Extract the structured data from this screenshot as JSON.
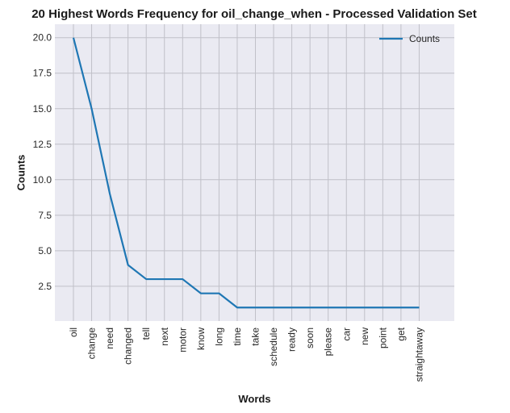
{
  "chart_data": {
    "type": "line",
    "title": "20 Highest Words Frequency for oil_change_when - Processed Validation Set",
    "xlabel": "Words",
    "ylabel": "Counts",
    "categories": [
      "oil",
      "change",
      "need",
      "changed",
      "tell",
      "next",
      "motor",
      "know",
      "long",
      "time",
      "take",
      "schedule",
      "ready",
      "soon",
      "please",
      "car",
      "new",
      "point",
      "get",
      "straightaway"
    ],
    "series": [
      {
        "name": "Counts",
        "values": [
          20,
          15,
          9,
          4,
          3,
          3,
          3,
          2,
          2,
          1,
          1,
          1,
          1,
          1,
          1,
          1,
          1,
          1,
          1,
          1
        ]
      }
    ],
    "yticks": [
      "2.5",
      "5.0",
      "7.5",
      "10.0",
      "12.5",
      "15.0",
      "17.5",
      "20.0"
    ],
    "ylim": [
      0.05,
      20.95
    ],
    "grid": true,
    "legend": "top-right",
    "colors": {
      "line": "#1f77b4",
      "plot_bg": "#eaeaf2",
      "grid": "#c0c0c8"
    }
  }
}
